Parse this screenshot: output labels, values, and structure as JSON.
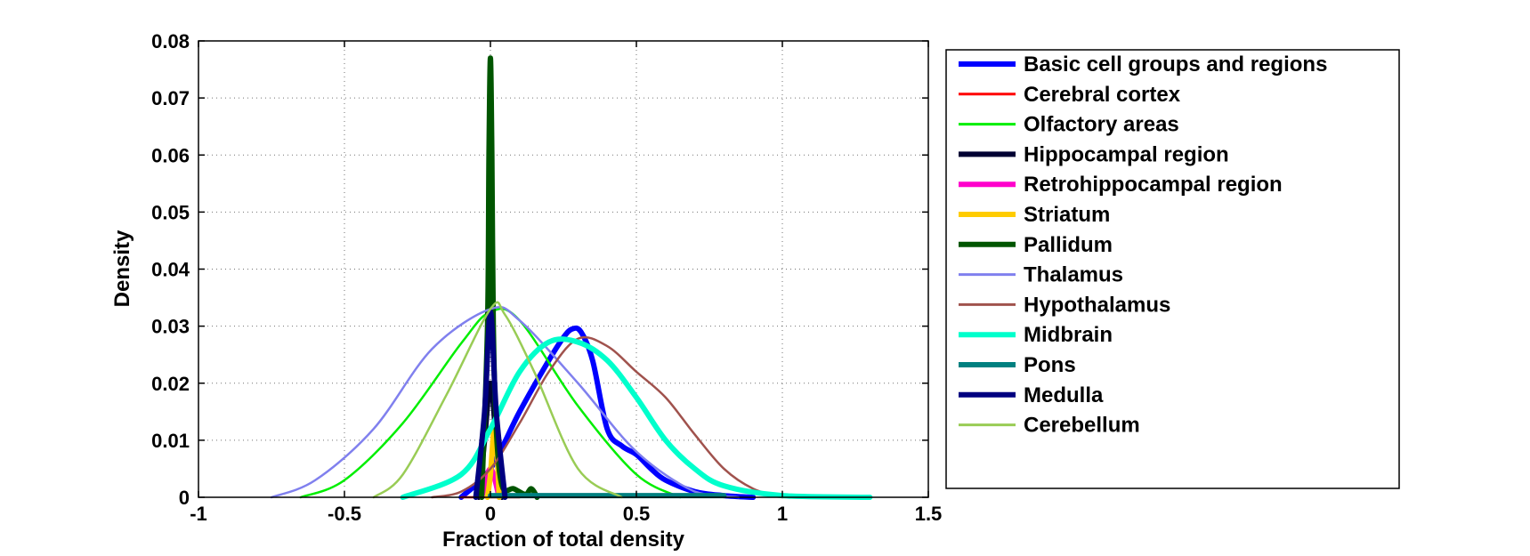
{
  "chart_data": {
    "type": "line",
    "title": "",
    "xlabel": "Fraction of total density",
    "ylabel": "Density",
    "xlim": [
      -1,
      1.5
    ],
    "ylim": [
      0,
      0.08
    ],
    "xticks": [
      -1,
      -0.5,
      0,
      0.5,
      1,
      1.5
    ],
    "xtick_labels": [
      "-1",
      "-0.5",
      "0",
      "0.5",
      "1",
      "1.5"
    ],
    "yticks": [
      0,
      0.01,
      0.02,
      0.03,
      0.04,
      0.05,
      0.06,
      0.07,
      0.08
    ],
    "ytick_labels": [
      "0",
      "0.01",
      "0.02",
      "0.03",
      "0.04",
      "0.05",
      "0.06",
      "0.07",
      "0.08"
    ],
    "grid": true,
    "legend_position": "outside-right",
    "series": [
      {
        "name": "Basic cell groups and regions",
        "color": "#0000ff",
        "width": "thick",
        "x": [
          -0.1,
          0,
          0.1,
          0.2,
          0.25,
          0.28,
          0.31,
          0.35,
          0.4,
          0.45,
          0.5,
          0.55,
          0.6,
          0.7,
          0.8,
          0.9
        ],
        "y": [
          0.0,
          0.005,
          0.015,
          0.024,
          0.028,
          0.0295,
          0.029,
          0.024,
          0.012,
          0.009,
          0.0075,
          0.005,
          0.003,
          0.001,
          0.0003,
          0.0
        ]
      },
      {
        "name": "Cerebral cortex",
        "color": "#ff0000",
        "width": "thin",
        "x": [
          -0.1,
          -0.03,
          0,
          0.03,
          0.1
        ],
        "y": [
          0.0,
          0.0,
          0.0,
          0.0,
          0.0
        ]
      },
      {
        "name": "Olfactory areas",
        "color": "#00ee00",
        "width": "thin",
        "x": [
          -0.65,
          -0.5,
          -0.3,
          -0.1,
          0,
          0.1,
          0.3,
          0.5,
          0.65
        ],
        "y": [
          0.0,
          0.003,
          0.013,
          0.027,
          0.0325,
          0.031,
          0.016,
          0.004,
          0.0
        ]
      },
      {
        "name": "Hippocampal region",
        "color": "#000033",
        "width": "thick",
        "x": [
          -0.04,
          -0.02,
          0,
          0.02,
          0.04
        ],
        "y": [
          0.0,
          0.01,
          0.02,
          0.01,
          0.0
        ]
      },
      {
        "name": "Retrohippocampal region",
        "color": "#ff00cc",
        "width": "thick",
        "x": [
          -0.03,
          0,
          0.03
        ],
        "y": [
          0.0,
          0.005,
          0.0
        ]
      },
      {
        "name": "Striatum",
        "color": "#ffcc00",
        "width": "thick",
        "x": [
          -0.01,
          0,
          0.01,
          0.015,
          0.02,
          0.03
        ],
        "y": [
          0.0,
          0.004,
          0.011,
          0.0125,
          0.011,
          0.0
        ]
      },
      {
        "name": "Pallidum",
        "color": "#005500",
        "width": "thick",
        "x": [
          -0.03,
          -0.01,
          -0.005,
          0,
          0.005,
          0.01,
          0.02,
          0.04,
          0.08,
          0.12,
          0.14,
          0.16
        ],
        "y": [
          0.0,
          0.03,
          0.06,
          0.077,
          0.06,
          0.03,
          0.012,
          0.002,
          0.0015,
          0.0005,
          0.0015,
          0.0
        ]
      },
      {
        "name": "Thalamus",
        "color": "#8080ee",
        "width": "thin",
        "x": [
          -0.75,
          -0.6,
          -0.4,
          -0.2,
          0,
          0.1,
          0.3,
          0.5,
          0.7,
          0.85
        ],
        "y": [
          0.0,
          0.003,
          0.012,
          0.026,
          0.033,
          0.031,
          0.02,
          0.008,
          0.001,
          0.0
        ]
      },
      {
        "name": "Hypothalamus",
        "color": "#a0524d",
        "width": "thin",
        "x": [
          -0.2,
          -0.1,
          0,
          0.1,
          0.2,
          0.3,
          0.4,
          0.5,
          0.6,
          0.7,
          0.8,
          0.9,
          1.0
        ],
        "y": [
          0.0,
          0.001,
          0.005,
          0.013,
          0.022,
          0.0278,
          0.0265,
          0.022,
          0.0175,
          0.011,
          0.005,
          0.0015,
          0.0
        ]
      },
      {
        "name": "Midbrain",
        "color": "#00ffcc",
        "width": "thick",
        "x": [
          -0.3,
          -0.1,
          0,
          0.1,
          0.2,
          0.3,
          0.4,
          0.5,
          0.6,
          0.7,
          0.8,
          1.0,
          1.3
        ],
        "y": [
          0.0,
          0.004,
          0.012,
          0.022,
          0.0272,
          0.0272,
          0.024,
          0.0175,
          0.01,
          0.005,
          0.002,
          0.0003,
          0.0
        ]
      },
      {
        "name": "Pons",
        "color": "#008080",
        "width": "thick",
        "x": [
          0.0,
          0.3,
          0.6,
          0.8
        ],
        "y": [
          0.0003,
          0.0003,
          0.0003,
          0.0003
        ]
      },
      {
        "name": "Medulla",
        "color": "#000080",
        "width": "thick",
        "x": [
          -0.05,
          -0.02,
          0,
          0.02,
          0.05
        ],
        "y": [
          0.0,
          0.015,
          0.0325,
          0.015,
          0.0
        ]
      },
      {
        "name": "Cerebellum",
        "color": "#99cc55",
        "width": "thin",
        "x": [
          -0.4,
          -0.3,
          -0.15,
          0,
          0.05,
          0.15,
          0.3,
          0.45
        ],
        "y": [
          0.0,
          0.004,
          0.018,
          0.033,
          0.032,
          0.022,
          0.005,
          0.0
        ]
      }
    ]
  }
}
